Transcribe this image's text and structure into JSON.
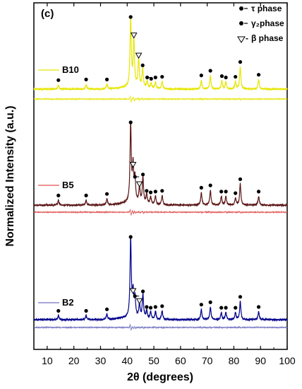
{
  "chart_data": {
    "type": "line",
    "panel_label": "(c)",
    "xlabel": "2θ (degrees)",
    "ylabel": "Normalized Intensity (a.u.)",
    "xlim": [
      5,
      100
    ],
    "xticks": [
      10,
      20,
      30,
      40,
      50,
      60,
      70,
      80,
      90,
      100
    ],
    "legend": {
      "placement": "top-right",
      "entries": [
        {
          "marker": "tau-dot",
          "label": "τ phase"
        },
        {
          "marker": "gamma2-dot",
          "label": "γ₂phase"
        },
        {
          "marker": "beta-triangle",
          "label": "β phase"
        }
      ]
    },
    "series": [
      {
        "name": "B10",
        "color": "#e6e600",
        "diff_color": "#e6e600",
        "peaks": [
          {
            "x": 14.2,
            "h": 0.06,
            "m": "tau"
          },
          {
            "x": 24.6,
            "h": 0.07,
            "m": "tau"
          },
          {
            "x": 32.4,
            "h": 0.07,
            "m": "tau"
          },
          {
            "x": 41.3,
            "h": 1.0,
            "m": "tau"
          },
          {
            "x": 42.5,
            "h": 0.72,
            "m": "beta"
          },
          {
            "x": 44.3,
            "h": 0.42,
            "m": "beta"
          },
          {
            "x": 45.8,
            "h": 0.28,
            "m": "tau"
          },
          {
            "x": 47.5,
            "h": 0.1,
            "m": "gamma"
          },
          {
            "x": 49.0,
            "h": 0.08,
            "m": "tau"
          },
          {
            "x": 50.6,
            "h": 0.1,
            "m": "tau"
          },
          {
            "x": 53.1,
            "h": 0.11,
            "m": "tau"
          },
          {
            "x": 67.8,
            "h": 0.13,
            "m": "tau"
          },
          {
            "x": 71.2,
            "h": 0.2,
            "m": "tau"
          },
          {
            "x": 75.5,
            "h": 0.12,
            "m": "tau"
          },
          {
            "x": 77.0,
            "h": 0.1,
            "m": "tau"
          },
          {
            "x": 80.6,
            "h": 0.11,
            "m": "tau"
          },
          {
            "x": 82.4,
            "h": 0.33,
            "m": "tau"
          },
          {
            "x": 89.3,
            "h": 0.14,
            "m": "tau"
          }
        ]
      },
      {
        "name": "B5",
        "color": "#5a1414",
        "diff_color": "#e05050",
        "peaks": [
          {
            "x": 14.2,
            "h": 0.06,
            "m": "tau"
          },
          {
            "x": 24.6,
            "h": 0.06,
            "m": "tau"
          },
          {
            "x": 32.4,
            "h": 0.08,
            "m": "tau"
          },
          {
            "x": 41.3,
            "h": 1.0,
            "m": "tau"
          },
          {
            "x": 42.2,
            "h": 0.45,
            "m": "beta"
          },
          {
            "x": 42.9,
            "h": 0.3,
            "m": "gamma"
          },
          {
            "x": 44.6,
            "h": 0.2,
            "m": "beta"
          },
          {
            "x": 45.9,
            "h": 0.33,
            "m": "tau"
          },
          {
            "x": 47.3,
            "h": 0.12,
            "m": "tau"
          },
          {
            "x": 48.8,
            "h": 0.1,
            "m": "tau"
          },
          {
            "x": 50.6,
            "h": 0.11,
            "m": "tau"
          },
          {
            "x": 53.1,
            "h": 0.12,
            "m": "tau"
          },
          {
            "x": 67.8,
            "h": 0.16,
            "m": "tau"
          },
          {
            "x": 71.2,
            "h": 0.19,
            "m": "tau"
          },
          {
            "x": 75.3,
            "h": 0.11,
            "m": "tau"
          },
          {
            "x": 77.0,
            "h": 0.11,
            "m": "tau"
          },
          {
            "x": 80.6,
            "h": 0.09,
            "m": "tau"
          },
          {
            "x": 82.4,
            "h": 0.27,
            "m": "tau"
          },
          {
            "x": 89.3,
            "h": 0.11,
            "m": "tau"
          }
        ]
      },
      {
        "name": "B2",
        "color": "#00008b",
        "diff_color": "#7070c0",
        "peaks": [
          {
            "x": 14.2,
            "h": 0.05,
            "m": "tau"
          },
          {
            "x": 24.6,
            "h": 0.05,
            "m": "tau"
          },
          {
            "x": 32.4,
            "h": 0.07,
            "m": "tau"
          },
          {
            "x": 41.3,
            "h": 1.0,
            "m": "tau"
          },
          {
            "x": 42.2,
            "h": 0.3,
            "m": "beta"
          },
          {
            "x": 42.9,
            "h": 0.24,
            "m": "gamma"
          },
          {
            "x": 44.6,
            "h": 0.17,
            "m": "beta"
          },
          {
            "x": 45.9,
            "h": 0.3,
            "m": "tau"
          },
          {
            "x": 47.3,
            "h": 0.1,
            "m": "tau"
          },
          {
            "x": 48.8,
            "h": 0.09,
            "m": "tau"
          },
          {
            "x": 50.6,
            "h": 0.1,
            "m": "tau"
          },
          {
            "x": 53.1,
            "h": 0.11,
            "m": "tau"
          },
          {
            "x": 67.8,
            "h": 0.13,
            "m": "tau"
          },
          {
            "x": 71.2,
            "h": 0.16,
            "m": "tau"
          },
          {
            "x": 75.3,
            "h": 0.09,
            "m": "tau"
          },
          {
            "x": 77.0,
            "h": 0.09,
            "m": "tau"
          },
          {
            "x": 80.6,
            "h": 0.09,
            "m": "tau"
          },
          {
            "x": 82.4,
            "h": 0.23,
            "m": "tau"
          },
          {
            "x": 89.3,
            "h": 0.1,
            "m": "tau"
          }
        ]
      }
    ]
  }
}
